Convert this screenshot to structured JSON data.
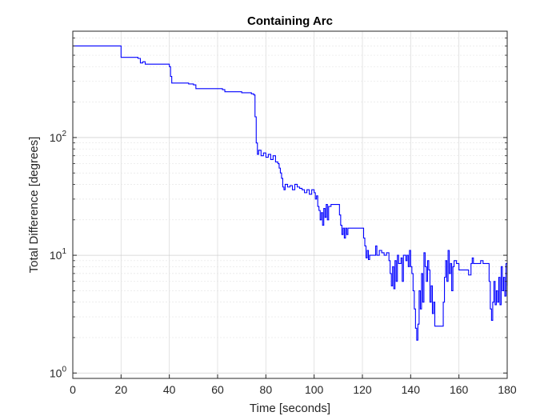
{
  "chart_data": {
    "type": "line",
    "title": "Containing Arc",
    "xlabel": "Time [seconds]",
    "ylabel": "Total Difference [degrees]",
    "xlim": [
      0,
      180
    ],
    "ylim": [
      0.9,
      800
    ],
    "yscale": "log",
    "grid": true,
    "minor_grid": true,
    "x_ticks": [
      0,
      20,
      40,
      60,
      80,
      100,
      120,
      140,
      160,
      180
    ],
    "y_ticks": [
      {
        "value": 1,
        "base": "10",
        "exponent": "0"
      },
      {
        "value": 10,
        "base": "10",
        "exponent": "1"
      },
      {
        "value": 100,
        "base": "10",
        "exponent": "2"
      }
    ],
    "series": [
      {
        "color": "#0000ff",
        "points": [
          [
            0,
            600
          ],
          [
            19.5,
            600
          ],
          [
            20,
            480
          ],
          [
            27,
            470
          ],
          [
            28,
            430
          ],
          [
            29,
            440
          ],
          [
            30,
            420
          ],
          [
            38,
            420
          ],
          [
            40,
            400
          ],
          [
            40.5,
            330
          ],
          [
            41,
            290
          ],
          [
            48,
            285
          ],
          [
            50,
            280
          ],
          [
            51,
            260
          ],
          [
            62,
            255
          ],
          [
            63,
            245
          ],
          [
            70,
            240
          ],
          [
            74,
            235
          ],
          [
            75,
            230
          ],
          [
            75.5,
            150
          ],
          [
            76,
            90
          ],
          [
            76.5,
            72
          ],
          [
            77,
            78
          ],
          [
            78,
            70
          ],
          [
            79,
            74
          ],
          [
            80,
            68
          ],
          [
            81,
            72
          ],
          [
            82,
            65
          ],
          [
            83,
            70
          ],
          [
            84,
            62
          ],
          [
            85,
            60
          ],
          [
            85.5,
            55
          ],
          [
            86,
            50
          ],
          [
            86.5,
            45
          ],
          [
            87,
            38
          ],
          [
            87.5,
            36
          ],
          [
            88,
            40
          ],
          [
            89,
            38
          ],
          [
            90,
            39
          ],
          [
            91,
            36
          ],
          [
            92,
            40
          ],
          [
            93,
            38
          ],
          [
            94,
            37
          ],
          [
            95,
            36
          ],
          [
            96,
            34
          ],
          [
            97,
            36
          ],
          [
            98,
            33
          ],
          [
            99,
            36
          ],
          [
            100,
            34
          ],
          [
            100.5,
            30
          ],
          [
            101,
            32
          ],
          [
            101.5,
            26
          ],
          [
            102,
            24
          ],
          [
            102.5,
            20
          ],
          [
            103,
            23
          ],
          [
            103.5,
            18
          ],
          [
            104,
            25
          ],
          [
            104.5,
            21
          ],
          [
            105,
            27
          ],
          [
            105.5,
            20
          ],
          [
            106,
            26
          ],
          [
            107,
            27
          ],
          [
            108,
            27
          ],
          [
            109,
            27
          ],
          [
            110,
            27
          ],
          [
            110.5,
            22
          ],
          [
            111,
            18
          ],
          [
            111.5,
            15
          ],
          [
            112,
            17
          ],
          [
            112.5,
            14
          ],
          [
            113,
            17
          ],
          [
            113.5,
            15
          ],
          [
            114,
            17
          ],
          [
            115,
            17
          ],
          [
            116,
            17
          ],
          [
            117,
            17
          ],
          [
            118,
            17
          ],
          [
            119,
            17
          ],
          [
            120,
            17
          ],
          [
            120.5,
            14
          ],
          [
            121,
            12
          ],
          [
            121.5,
            9.5
          ],
          [
            122,
            11
          ],
          [
            122.5,
            9.2
          ],
          [
            123,
            10
          ],
          [
            124,
            10
          ],
          [
            125,
            10
          ],
          [
            125.5,
            12
          ],
          [
            126,
            10
          ],
          [
            127,
            11
          ],
          [
            128,
            10.5
          ],
          [
            129,
            10
          ],
          [
            130,
            10.5
          ],
          [
            131,
            9
          ],
          [
            131.5,
            7
          ],
          [
            132,
            5.5
          ],
          [
            132.5,
            8
          ],
          [
            133,
            5.2
          ],
          [
            133.5,
            9
          ],
          [
            134,
            6
          ],
          [
            134.5,
            10
          ],
          [
            135,
            8.5
          ],
          [
            136,
            9.5
          ],
          [
            136.5,
            6
          ],
          [
            137,
            10
          ],
          [
            138,
            9
          ],
          [
            138.5,
            10
          ],
          [
            139,
            8
          ],
          [
            139.5,
            11
          ],
          [
            140,
            8
          ],
          [
            140.5,
            7
          ],
          [
            141,
            5
          ],
          [
            141.5,
            3.5
          ],
          [
            142,
            2.4
          ],
          [
            142.5,
            1.9
          ],
          [
            143,
            2.6
          ],
          [
            143.5,
            5
          ],
          [
            144,
            3.5
          ],
          [
            144.5,
            7
          ],
          [
            145,
            4
          ],
          [
            145.5,
            10.5
          ],
          [
            146,
            8
          ],
          [
            146.5,
            6
          ],
          [
            147,
            9
          ],
          [
            147.5,
            7.5
          ],
          [
            148,
            4
          ],
          [
            148.5,
            5.5
          ],
          [
            149,
            3.2
          ],
          [
            149.5,
            4
          ],
          [
            150,
            2.5
          ],
          [
            151,
            2.5
          ],
          [
            152,
            2.5
          ],
          [
            153,
            2.5
          ],
          [
            153.5,
            4
          ],
          [
            154,
            6.5
          ],
          [
            154.5,
            9
          ],
          [
            155,
            6
          ],
          [
            155.5,
            11
          ],
          [
            156,
            7
          ],
          [
            156.5,
            8.5
          ],
          [
            157,
            5
          ],
          [
            157.5,
            8
          ],
          [
            158,
            9
          ],
          [
            159,
            8.5
          ],
          [
            160,
            7.5
          ],
          [
            161,
            7.5
          ],
          [
            162,
            7.5
          ],
          [
            163,
            7.5
          ],
          [
            164,
            6.8
          ],
          [
            165,
            8.5
          ],
          [
            165.5,
            9.5
          ],
          [
            166,
            8.5
          ],
          [
            167,
            8.5
          ],
          [
            168,
            8.5
          ],
          [
            169,
            9
          ],
          [
            170,
            8.5
          ],
          [
            171,
            8.5
          ],
          [
            172,
            8.5
          ],
          [
            172.5,
            6
          ],
          [
            173,
            3.5
          ],
          [
            173.5,
            2.8
          ],
          [
            174,
            4
          ],
          [
            174.5,
            6
          ],
          [
            175,
            3.8
          ],
          [
            175.5,
            5
          ],
          [
            176,
            4
          ],
          [
            176.5,
            6.5
          ],
          [
            177,
            3.8
          ],
          [
            177.5,
            8
          ],
          [
            178,
            5
          ],
          [
            178.5,
            6.5
          ],
          [
            179,
            4.5
          ],
          [
            179.5,
            8.5
          ],
          [
            180,
            5.5
          ]
        ]
      }
    ]
  }
}
